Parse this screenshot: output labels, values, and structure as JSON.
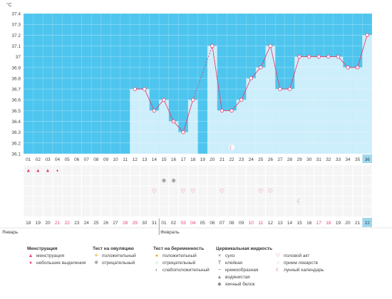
{
  "chart_data": {
    "type": "line",
    "unit_label": "°C",
    "ylim": [
      36.1,
      37.4
    ],
    "y_ticks": [
      "36.1",
      "36.2",
      "36.3",
      "36.4",
      "36.5",
      "36.6",
      "36.7",
      "36.8",
      "36.9",
      "37",
      "37.1",
      "37.2",
      "37.3",
      "37.4"
    ],
    "cycle_days": [
      "01",
      "02",
      "03",
      "04",
      "05",
      "06",
      "07",
      "08",
      "09",
      "10",
      "11",
      "12",
      "13",
      "14",
      "15",
      "16",
      "17",
      "18",
      "19",
      "20",
      "21",
      "22",
      "23",
      "24",
      "25",
      "26",
      "27",
      "28",
      "29",
      "30",
      "31",
      "32",
      "33",
      "34",
      "35",
      "36"
    ],
    "dates": [
      "18",
      "19",
      "20",
      "21",
      "22",
      "23",
      "24",
      "25",
      "26",
      "27",
      "28",
      "29",
      "30",
      "31",
      "01",
      "02",
      "03",
      "04",
      "05",
      "06",
      "07",
      "08",
      "09",
      "10",
      "11",
      "12",
      "13",
      "14",
      "15",
      "16",
      "17",
      "18",
      "19",
      "20",
      "21",
      "22"
    ],
    "date_weekend": [
      false,
      false,
      false,
      true,
      true,
      false,
      false,
      false,
      false,
      false,
      true,
      true,
      false,
      false,
      false,
      false,
      true,
      true,
      false,
      false,
      false,
      false,
      false,
      true,
      true,
      false,
      false,
      false,
      false,
      false,
      true,
      true,
      false,
      false,
      false,
      false
    ],
    "months": [
      {
        "label": "Январь",
        "start_index": 0
      },
      {
        "label": "Февраль",
        "start_index": 14
      }
    ],
    "temperatures": [
      null,
      null,
      null,
      null,
      null,
      null,
      null,
      null,
      null,
      null,
      null,
      36.7,
      36.7,
      36.5,
      36.6,
      36.4,
      36.3,
      36.6,
      null,
      37.1,
      36.5,
      36.5,
      36.6,
      36.8,
      36.9,
      37.1,
      36.7,
      36.7,
      37.0,
      37.0,
      37.0,
      37.0,
      37.0,
      36.9,
      36.9,
      37.2
    ],
    "dashed_segment": [
      18,
      20
    ],
    "current_day_index": 35,
    "marker_rows": [
      {
        "row": 0,
        "symbol": "menstruation",
        "days": [
          1,
          2,
          3
        ]
      },
      {
        "row": 0,
        "symbol": "spotting",
        "days": [
          4
        ]
      },
      {
        "row": 1,
        "symbol": "ovulation-negative",
        "days": [
          15,
          16
        ]
      },
      {
        "row": 2,
        "symbol": "sex",
        "days": [
          14,
          17,
          18,
          21,
          25,
          26
        ]
      },
      {
        "row": 3,
        "symbol": "moon",
        "days": [
          29
        ]
      }
    ],
    "moon_in_chart_day": 22,
    "colors": {
      "plot_bg": "#4ec5ee",
      "bar_fill": "#cdeefb",
      "line": "#e5416f",
      "current_day_bg": "#9fd9f0"
    }
  },
  "legend": {
    "columns": [
      {
        "title": "Менструация",
        "items": [
          {
            "icon": "menstruation-icon",
            "glyph": "▲",
            "color": "#e5416f",
            "label": "менструация"
          },
          {
            "icon": "spotting-icon",
            "glyph": "♦",
            "color": "#e5416f",
            "label": "небольшие выделения"
          }
        ]
      },
      {
        "title": "Тест на овуляцию",
        "items": [
          {
            "icon": "ovulation-positive-icon",
            "glyph": "☀",
            "color": "#f0a535",
            "label": "положительный"
          },
          {
            "icon": "ovulation-negative-icon",
            "glyph": "✺",
            "color": "#999999",
            "label": "отрицательный"
          }
        ]
      },
      {
        "title": "Тест на беременность",
        "items": [
          {
            "icon": "pregnancy-positive-icon",
            "glyph": "●",
            "color": "#f0a535",
            "label": "положительный"
          },
          {
            "icon": "pregnancy-negative-icon",
            "glyph": "○",
            "color": "#999999",
            "label": "отрицательный"
          },
          {
            "icon": "pregnancy-weak-icon",
            "glyph": "◐",
            "color": "#999999",
            "label": "слабоположительный"
          }
        ]
      },
      {
        "title": "Цервикальная жидкость",
        "items": [
          {
            "icon": "dry-icon",
            "glyph": "×",
            "color": "#666666",
            "label": "сухо"
          },
          {
            "icon": "sticky-icon",
            "glyph": "T",
            "color": "#666666",
            "label": "клейкая"
          },
          {
            "icon": "creamy-icon",
            "glyph": "~",
            "color": "#666666",
            "label": "кремообразная"
          },
          {
            "icon": "watery-icon",
            "glyph": "▲",
            "color": "#888888",
            "label": "водянистая"
          },
          {
            "icon": "egg-white-icon",
            "glyph": "◆",
            "color": "#888888",
            "label": "яичный белок"
          }
        ]
      },
      {
        "title": "",
        "items": [
          {
            "icon": "heart-icon",
            "glyph": "♡",
            "color": "#e5416f",
            "label": "половой акт"
          },
          {
            "icon": "pill-icon",
            "glyph": "◌",
            "color": "#999999",
            "label": "прием лекарств"
          },
          {
            "icon": "moon-icon",
            "glyph": "☾",
            "color": "#e5416f",
            "label": "лунный календарь"
          }
        ]
      }
    ]
  }
}
